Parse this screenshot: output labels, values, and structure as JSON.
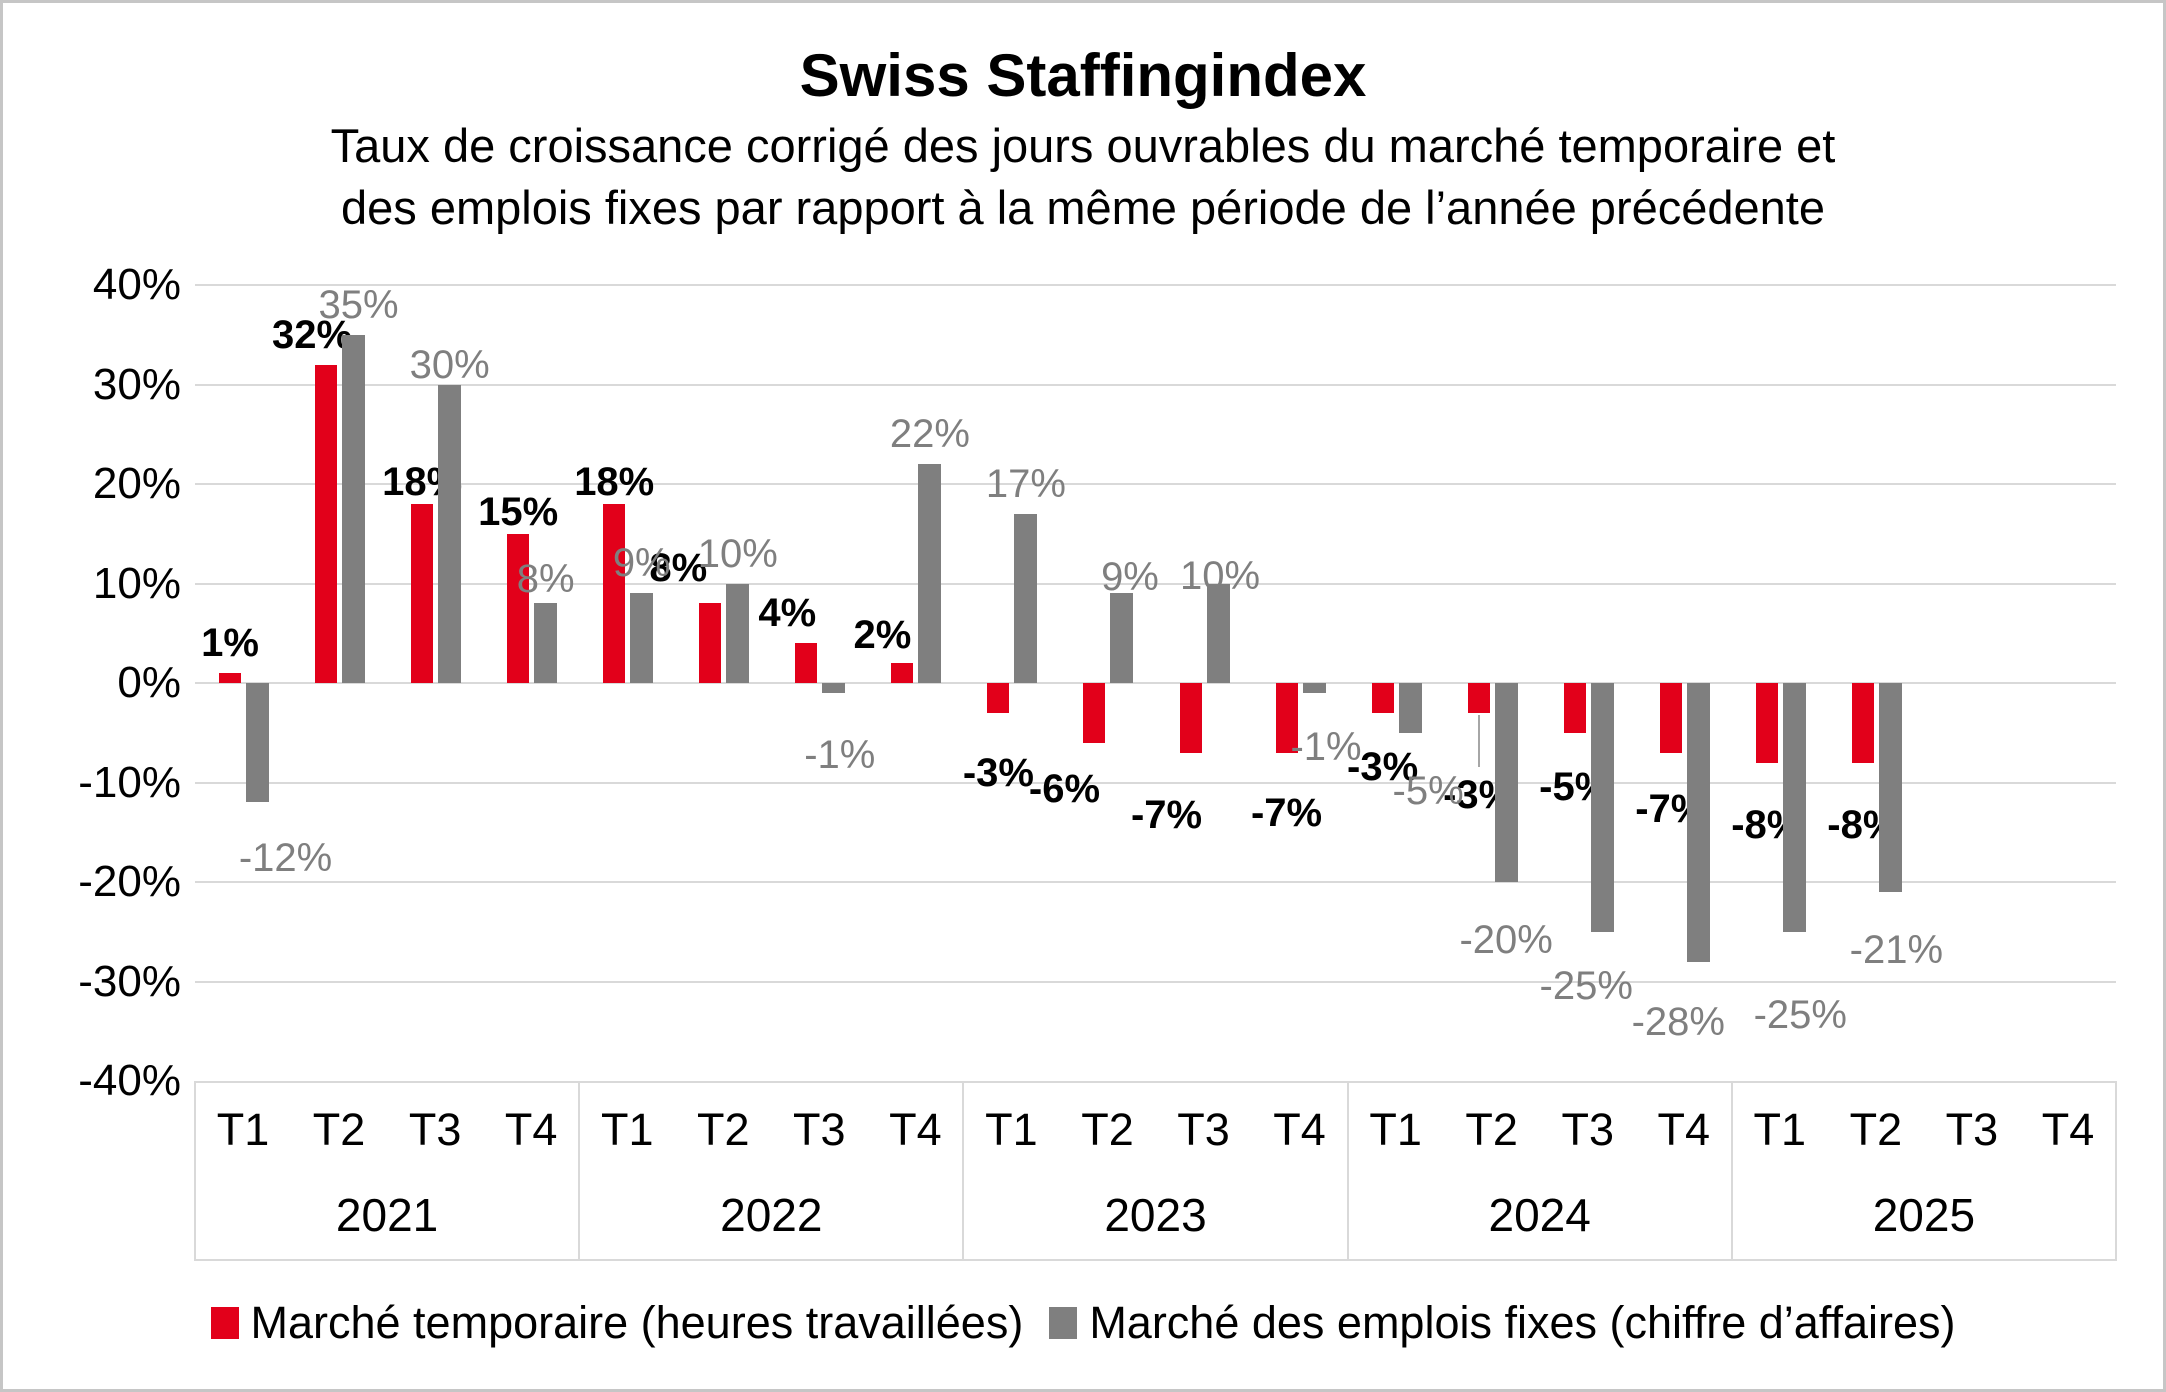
{
  "chart_data": {
    "type": "bar",
    "title": "Swiss Staffingindex",
    "subtitle_line1": "Taux de croissance corrigé des jours ouvrables du marché temporaire et",
    "subtitle_line2": "des emplois fixes par rapport à la même période de l’année précédente",
    "y_axis": {
      "min": -40,
      "max": 40,
      "step": 10,
      "unit": "%",
      "tick_labels": [
        "40%",
        "30%",
        "20%",
        "10%",
        "0%",
        "-10%",
        "-20%",
        "-30%",
        "-40%"
      ]
    },
    "x_axis": {
      "quarters": [
        "T1",
        "T2",
        "T3",
        "T4"
      ],
      "years": [
        "2021",
        "2022",
        "2023",
        "2024",
        "2025"
      ]
    },
    "grid": true,
    "gridline_color": "#d9d9d9",
    "legend_position": "bottom",
    "series": [
      {
        "name": "Marché temporaire (heures travaillées)",
        "color": "#e2001a",
        "label_color": "#000000",
        "values": [
          1,
          32,
          18,
          15,
          18,
          8,
          4,
          2,
          -3,
          -6,
          -7,
          -7,
          -3,
          -3,
          -5,
          -7,
          -8,
          -8,
          null,
          null
        ],
        "labels": [
          "1%",
          "32%",
          "18%",
          "15%",
          "18%",
          "8%",
          "4%",
          "2%",
          "-3%",
          "-6%",
          "-7%",
          "-7%",
          "-3%",
          "-3%",
          "-5%",
          "-7%",
          "-8%",
          "-8%",
          "",
          ""
        ]
      },
      {
        "name": "Marché des emplois fixes (chiffre d’affaires)",
        "color": "#7f7f7f",
        "label_color": "#7f7f7f",
        "values": [
          -12,
          35,
          30,
          8,
          9,
          10,
          -1,
          22,
          17,
          9,
          10,
          -1,
          -5,
          -20,
          -25,
          -28,
          -25,
          -21,
          null,
          null
        ],
        "labels": [
          "-12%",
          "35%",
          "30%",
          "8%",
          "9%",
          "10%",
          "-1%",
          "22%",
          "17%",
          "9%",
          "10%",
          "-1%",
          "-5%",
          "-20%",
          "-25%",
          "-28%",
          "-25%",
          "-21%",
          "",
          ""
        ]
      }
    ]
  }
}
